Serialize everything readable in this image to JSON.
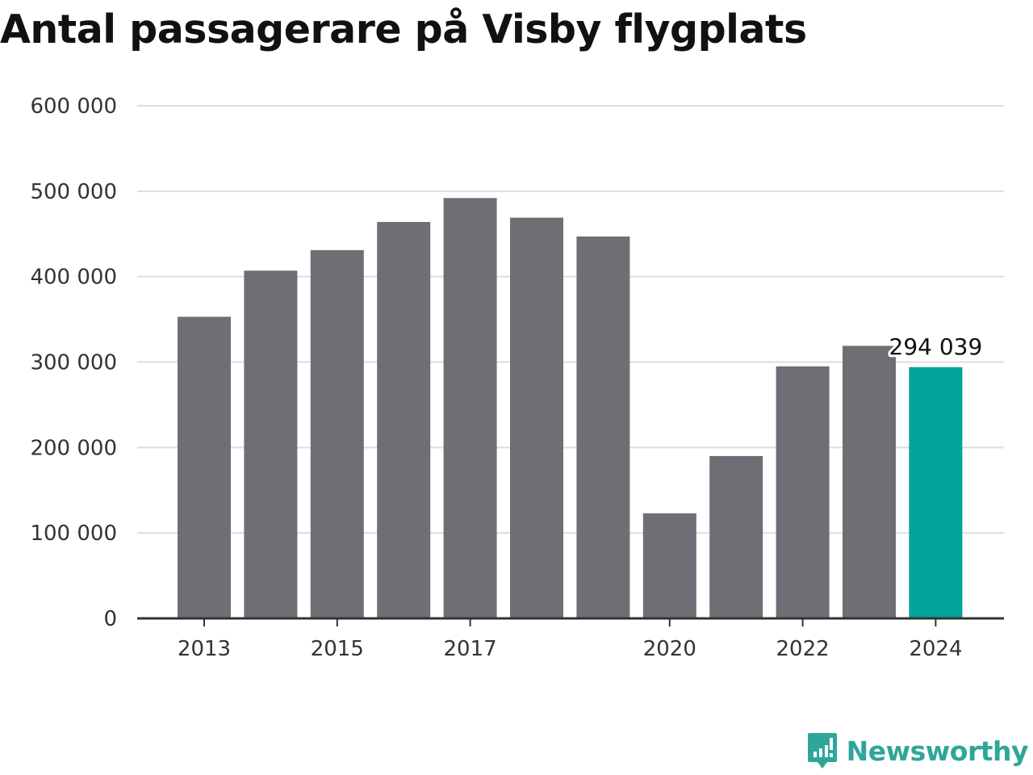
{
  "title": "Antal passagerare på Visby flygplats",
  "brand": {
    "name": "Newsworthy",
    "icon": "newsworthy-logo-icon",
    "color": "#2ea69a"
  },
  "chart_data": {
    "type": "bar",
    "title": "Antal passagerare på Visby flygplats",
    "xlabel": "",
    "ylabel": "",
    "x": [
      2013,
      2014,
      2015,
      2016,
      2017,
      2018,
      2019,
      2020,
      2021,
      2022,
      2023,
      2024
    ],
    "values": [
      353000,
      407000,
      431000,
      464000,
      492000,
      469000,
      447000,
      123000,
      190000,
      295000,
      319000,
      294039
    ],
    "x_tick_labels": [
      "2013",
      "2015",
      "2017",
      "2020",
      "2022",
      "2024"
    ],
    "y_ticks": [
      0,
      100000,
      200000,
      300000,
      400000,
      500000,
      600000
    ],
    "y_tick_labels": [
      "0",
      "100 000",
      "200 000",
      "300 000",
      "400 000",
      "500 000",
      "600 000"
    ],
    "ylim": [
      0,
      600000
    ],
    "highlight": {
      "x": 2024,
      "label": "294 039"
    },
    "grid": true,
    "colors": {
      "bar": "#6f6e74",
      "highlight": "#00a49a",
      "grid": "#dddddd",
      "axis": "#333333"
    }
  }
}
